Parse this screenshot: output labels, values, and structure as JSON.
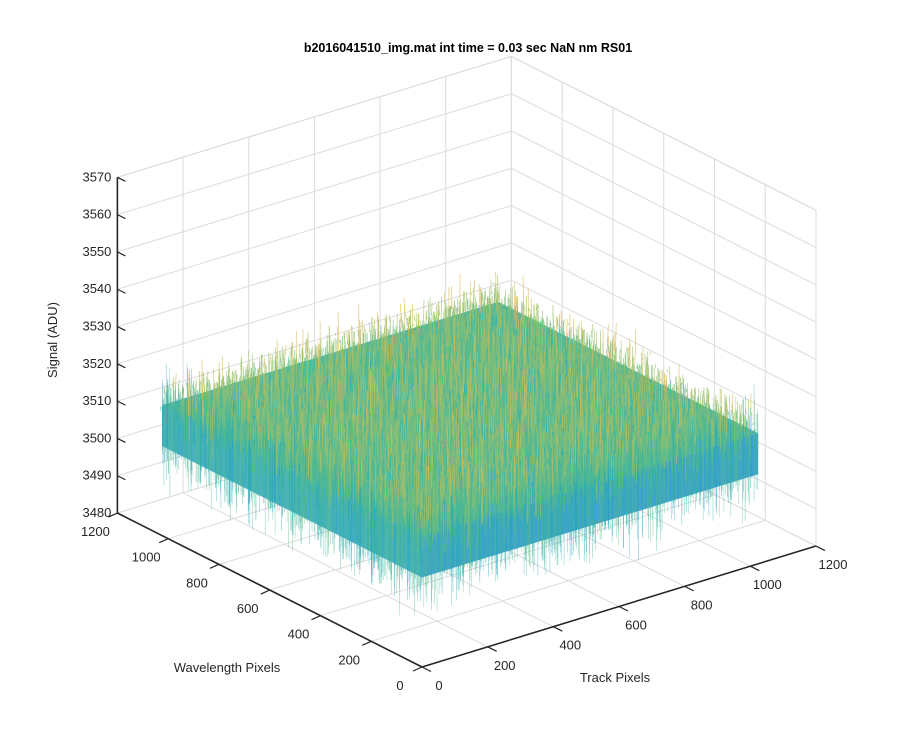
{
  "chart_data": {
    "type": "surface",
    "title": "b2016041510_img.mat int time = 0.03 sec  NaN nm RS01",
    "xlabel": "Track Pixels",
    "ylabel": "Wavelength Pixels",
    "zlabel": "Signal (ADU)",
    "xlim": [
      0,
      1200
    ],
    "ylim": [
      0,
      1200
    ],
    "zlim": [
      3480,
      3570
    ],
    "x_ticks": [
      "0",
      "200",
      "400",
      "600",
      "800",
      "1000",
      "1200"
    ],
    "y_ticks": [
      "0",
      "200",
      "400",
      "600",
      "800",
      "1000",
      "1200"
    ],
    "z_ticks": [
      "3480",
      "3490",
      "3500",
      "3510",
      "3520",
      "3530",
      "3540",
      "3550",
      "3560",
      "3570"
    ],
    "surface_extent": {
      "x": [
        0,
        1024
      ],
      "y": [
        0,
        1024
      ]
    },
    "signal_mean": 3515,
    "signal_range_visible": [
      3485,
      3560
    ],
    "colormap": [
      "#0072bd",
      "#1c9ec9",
      "#2fb2aa",
      "#58bd86",
      "#9cc06a",
      "#d9ba56",
      "#f2d44a"
    ],
    "grid": true,
    "view": "3d"
  }
}
